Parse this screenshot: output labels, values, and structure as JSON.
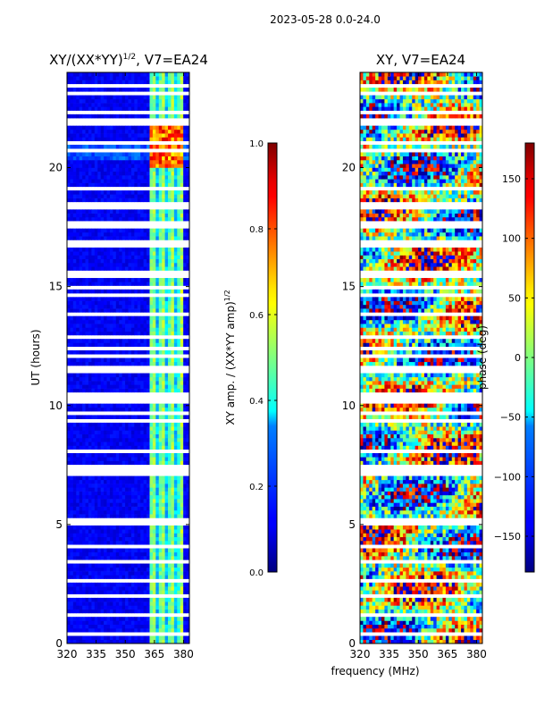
{
  "figure": {
    "suptitle": "2023-05-28 0.0-24.0",
    "xlabel": "frequency (MHz)"
  },
  "chart_data": [
    {
      "type": "heatmap",
      "title_main": "XY/(XX*YY)",
      "title_sup": "1/2",
      "title_tail": ", V7=EA24",
      "xlabel": "",
      "ylabel": "UT (hours)",
      "xlim": [
        320,
        383
      ],
      "ylim": [
        0,
        24
      ],
      "xticks": [
        320,
        335,
        350,
        365,
        380
      ],
      "yticks": [
        0,
        5,
        10,
        15,
        20
      ],
      "colorbar": {
        "label_main": "XY amp. / (XX*YY amp)",
        "label_sup": "1/2",
        "range": [
          0.0,
          1.0
        ],
        "ticks": [
          "0.0",
          "0.2",
          "0.4",
          "0.6",
          "0.8",
          "1.0"
        ],
        "tick_values": [
          0.0,
          0.2,
          0.4,
          0.6,
          0.8,
          1.0
        ],
        "colormap": "jet"
      },
      "summary": "Low amplitude (dark blue) from 320-363 MHz; high amplitude (cyan-yellow-red) channels between 363-380 MHz, strongest around 20-21.5 UT; many white flagged time rows.",
      "high_band_mhz": [
        363,
        380
      ],
      "peak_ut_hours": [
        20.0,
        21.6
      ]
    },
    {
      "type": "heatmap",
      "title_main": "XY, V7=EA24",
      "xlabel": "",
      "ylabel": "",
      "xlim": [
        320,
        383
      ],
      "ylim": [
        0,
        24
      ],
      "xticks": [
        320,
        335,
        350,
        365,
        380
      ],
      "yticks": [
        0,
        5,
        10,
        15,
        20
      ],
      "colorbar": {
        "label_main": "phase (deg)",
        "range": [
          -180,
          180
        ],
        "ticks": [
          "150",
          "100",
          "50",
          "0",
          "−50",
          "−100",
          "−150"
        ],
        "tick_values": [
          150,
          100,
          50,
          0,
          -50,
          -100,
          -150
        ],
        "colormap": "jet"
      },
      "summary": "Phase varies across full -180 to 180 degree range with noisy, wrapping structure; same flagged white rows as amplitude panel."
    }
  ]
}
